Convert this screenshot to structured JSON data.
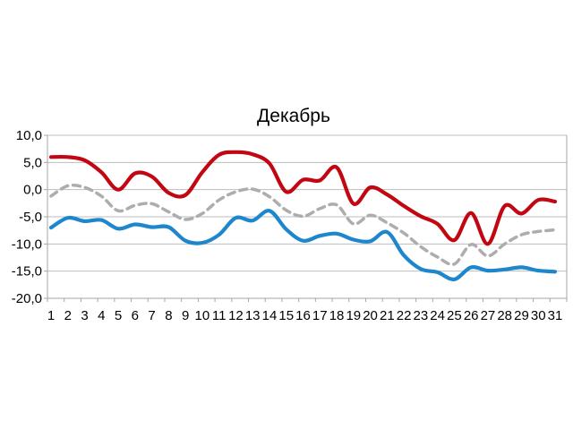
{
  "page": {
    "background_color": "#ffffff"
  },
  "chart_data": {
    "type": "line",
    "title": "Декабрь",
    "legend": "none",
    "grid": "horizontal",
    "xlabel": "",
    "ylabel": "",
    "ylim": [
      -20,
      10
    ],
    "y_tick_step": 5,
    "y_tick_labels": [
      "10,0",
      "5,0",
      "0,0",
      "-5,0",
      "-10,0",
      "-15,0",
      "-20,0"
    ],
    "y_tick_values": [
      10,
      5,
      0,
      -5,
      -10,
      -15,
      -20
    ],
    "x": [
      1,
      2,
      3,
      4,
      5,
      6,
      7,
      8,
      9,
      10,
      11,
      12,
      13,
      14,
      15,
      16,
      17,
      18,
      19,
      20,
      21,
      22,
      23,
      24,
      25,
      26,
      27,
      28,
      29,
      30,
      31
    ],
    "x_tick_labels": [
      "1",
      "2",
      "3",
      "4",
      "5",
      "6",
      "7",
      "8",
      "9",
      "10",
      "11",
      "12",
      "13",
      "14",
      "15",
      "16",
      "17",
      "18",
      "19",
      "20",
      "21",
      "22",
      "23",
      "24",
      "25",
      "26",
      "27",
      "28",
      "29",
      "30",
      "31"
    ],
    "series": [
      {
        "name": "red-line",
        "color": "#C20612",
        "style": "solid",
        "smooth": true,
        "values": [
          6.0,
          6.0,
          5.4,
          3.2,
          0.0,
          3.0,
          2.4,
          -0.6,
          -1.0,
          3.2,
          6.4,
          6.9,
          6.5,
          4.8,
          -0.4,
          1.8,
          1.7,
          4.1,
          -2.6,
          0.4,
          -0.9,
          -3.0,
          -4.9,
          -6.3,
          -9.3,
          -4.3,
          -10.0,
          -3.0,
          -4.4,
          -1.9,
          -2.2
        ]
      },
      {
        "name": "gray-dashed-line",
        "color": "#ADADAD",
        "style": "dashed",
        "smooth": true,
        "values": [
          -1.2,
          0.7,
          0.4,
          -1.2,
          -3.9,
          -2.9,
          -2.6,
          -4.1,
          -5.5,
          -4.4,
          -1.9,
          -0.4,
          0.1,
          -1.3,
          -3.8,
          -4.9,
          -3.5,
          -2.8,
          -6.3,
          -4.7,
          -6.1,
          -8.0,
          -10.5,
          -12.4,
          -13.7,
          -10.1,
          -12.2,
          -10.0,
          -8.3,
          -7.7,
          -7.4
        ]
      },
      {
        "name": "blue-line",
        "color": "#1E86CD",
        "style": "solid",
        "smooth": true,
        "values": [
          -7.0,
          -5.2,
          -5.8,
          -5.6,
          -7.2,
          -6.4,
          -6.9,
          -6.9,
          -9.4,
          -9.8,
          -8.3,
          -5.2,
          -5.7,
          -3.9,
          -7.3,
          -9.4,
          -8.5,
          -8.1,
          -9.2,
          -9.5,
          -7.8,
          -12.1,
          -14.6,
          -15.2,
          -16.5,
          -14.3,
          -14.9,
          -14.7,
          -14.3,
          -14.9,
          -15.1
        ]
      }
    ],
    "style_colors": {
      "gridline": "#BDBDBD",
      "axis": "#A6A6A6",
      "text": "#000000"
    }
  }
}
